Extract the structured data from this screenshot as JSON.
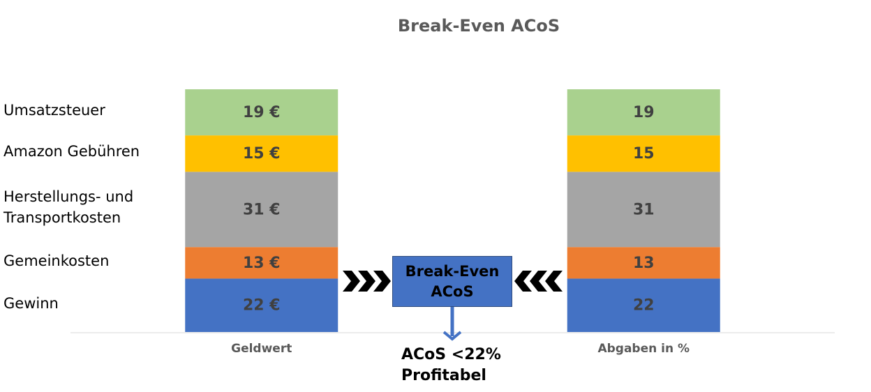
{
  "chart_data": {
    "type": "stacked_bar",
    "title": "Break-Even ACoS",
    "categories": [
      "Geldwert",
      "Abgaben in %"
    ],
    "series": [
      {
        "name": "Gewinn",
        "color": "#4472c4",
        "values": [
          22,
          22
        ],
        "value_labels": [
          "22 €",
          "22"
        ]
      },
      {
        "name": "Gemeinkosten",
        "color": "#ed7d31",
        "values": [
          13,
          13
        ],
        "value_labels": [
          "13 €",
          "13"
        ]
      },
      {
        "name": "Herstellungs- und Transportkosten",
        "color": "#a5a5a5",
        "values": [
          31,
          31
        ],
        "value_labels": [
          "31 €",
          "31"
        ]
      },
      {
        "name": "Amazon Gebühren",
        "color": "#ffc000",
        "values": [
          15,
          15
        ],
        "value_labels": [
          "15 €",
          "15"
        ]
      },
      {
        "name": "Umsatzsteuer",
        "color": "#a9d18e",
        "values": [
          19,
          19
        ],
        "value_labels": [
          "19 €",
          "19"
        ]
      }
    ],
    "ylim": [
      0,
      100
    ],
    "annotations": [
      "Break-Even ACoS",
      "ACoS <22% Profitabel"
    ]
  }
}
